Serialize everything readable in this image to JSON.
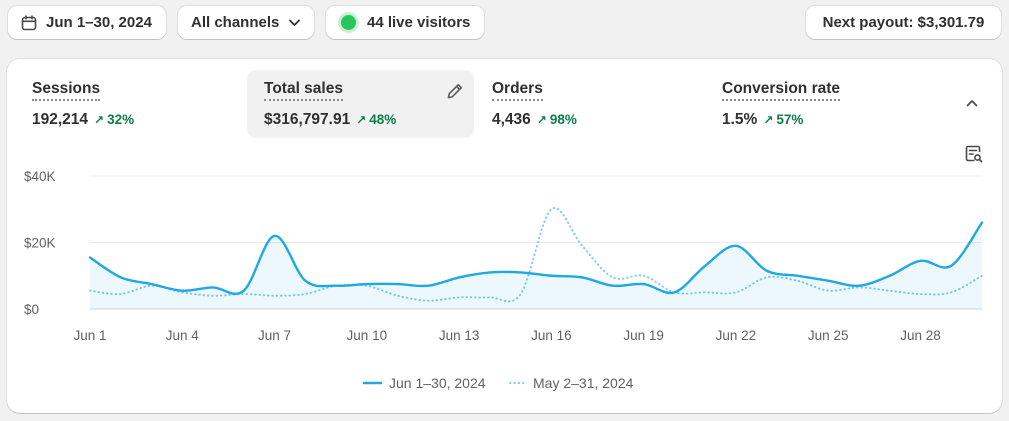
{
  "toolbar": {
    "date_range": "Jun 1–30, 2024",
    "channels": "All channels",
    "live_visitors": "44 live visitors",
    "payout": "Next payout: $3,301.79"
  },
  "metrics": [
    {
      "label": "Sessions",
      "value": "192,214",
      "change": "32%"
    },
    {
      "label": "Total sales",
      "value": "$316,797.91",
      "change": "48%"
    },
    {
      "label": "Orders",
      "value": "4,436",
      "change": "98%"
    },
    {
      "label": "Conversion rate",
      "value": "1.5%",
      "change": "57%"
    }
  ],
  "colors": {
    "current": "#1fa9e2",
    "previous": "#7fcdea",
    "positive_change": "#0c7e45",
    "live_dot": "#29c45b"
  },
  "icons": [
    "calendar-icon",
    "chevron-down-icon",
    "pencil-icon",
    "chevron-up-icon",
    "explore-chart-icon"
  ],
  "chart_data": {
    "type": "line",
    "x": [
      1,
      2,
      3,
      4,
      5,
      6,
      7,
      8,
      9,
      10,
      11,
      12,
      13,
      14,
      15,
      16,
      17,
      18,
      19,
      20,
      21,
      22,
      23,
      24,
      25,
      26,
      27,
      28,
      29,
      30
    ],
    "xticks": [
      "Jun 1",
      "Jun 4",
      "Jun 7",
      "Jun 10",
      "Jun 13",
      "Jun 16",
      "Jun 19",
      "Jun 22",
      "Jun 25",
      "Jun 28"
    ],
    "xtick_values": [
      1,
      4,
      7,
      10,
      13,
      16,
      19,
      22,
      25,
      28
    ],
    "yticks": [
      "$0",
      "$20K",
      "$40K"
    ],
    "ytick_values": [
      0,
      20000,
      40000
    ],
    "ylim": [
      0,
      40000
    ],
    "grid": true,
    "legend": "bottom-center",
    "series": [
      {
        "name": "Jun 1–30, 2024",
        "style": "solid",
        "values": [
          15500,
          9500,
          7500,
          5500,
          6500,
          5500,
          22000,
          8500,
          7000,
          7500,
          7500,
          7000,
          9500,
          11000,
          11000,
          10000,
          9500,
          7000,
          7500,
          5000,
          13000,
          19000,
          11500,
          10000,
          8500,
          7000,
          10000,
          14500,
          13000,
          26000
        ]
      },
      {
        "name": "May 2–31, 2024",
        "style": "dotted",
        "values": [
          5500,
          4500,
          7000,
          5000,
          4000,
          4500,
          4000,
          4500,
          7000,
          7000,
          4000,
          2500,
          3500,
          3500,
          4500,
          30000,
          19000,
          9500,
          10000,
          5000,
          5000,
          5000,
          9500,
          8500,
          5500,
          6500,
          5500,
          4500,
          5000,
          10000
        ]
      }
    ]
  }
}
